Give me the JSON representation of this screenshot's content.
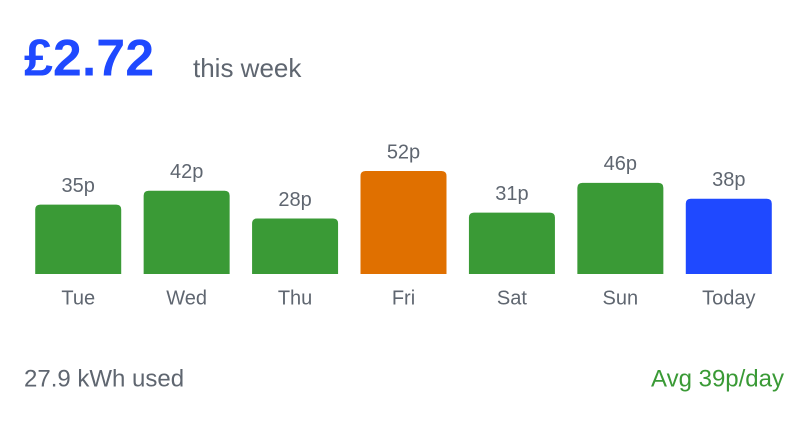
{
  "summary": {
    "total": "£2.72",
    "period": "this week"
  },
  "chart_data": {
    "type": "bar",
    "categories": [
      "Tue",
      "Wed",
      "Thu",
      "Fri",
      "Sat",
      "Sun",
      "Today"
    ],
    "values": [
      35,
      42,
      28,
      52,
      31,
      46,
      38
    ],
    "value_labels": [
      "35p",
      "42p",
      "28p",
      "52p",
      "31p",
      "46p",
      "38p"
    ],
    "colors": [
      "#3a9a36",
      "#3a9a36",
      "#3a9a36",
      "#e07000",
      "#3a9a36",
      "#3a9a36",
      "#1f49ff"
    ]
  },
  "footer": {
    "usage": "27.9 kWh used",
    "average": "Avg 39p/day"
  }
}
